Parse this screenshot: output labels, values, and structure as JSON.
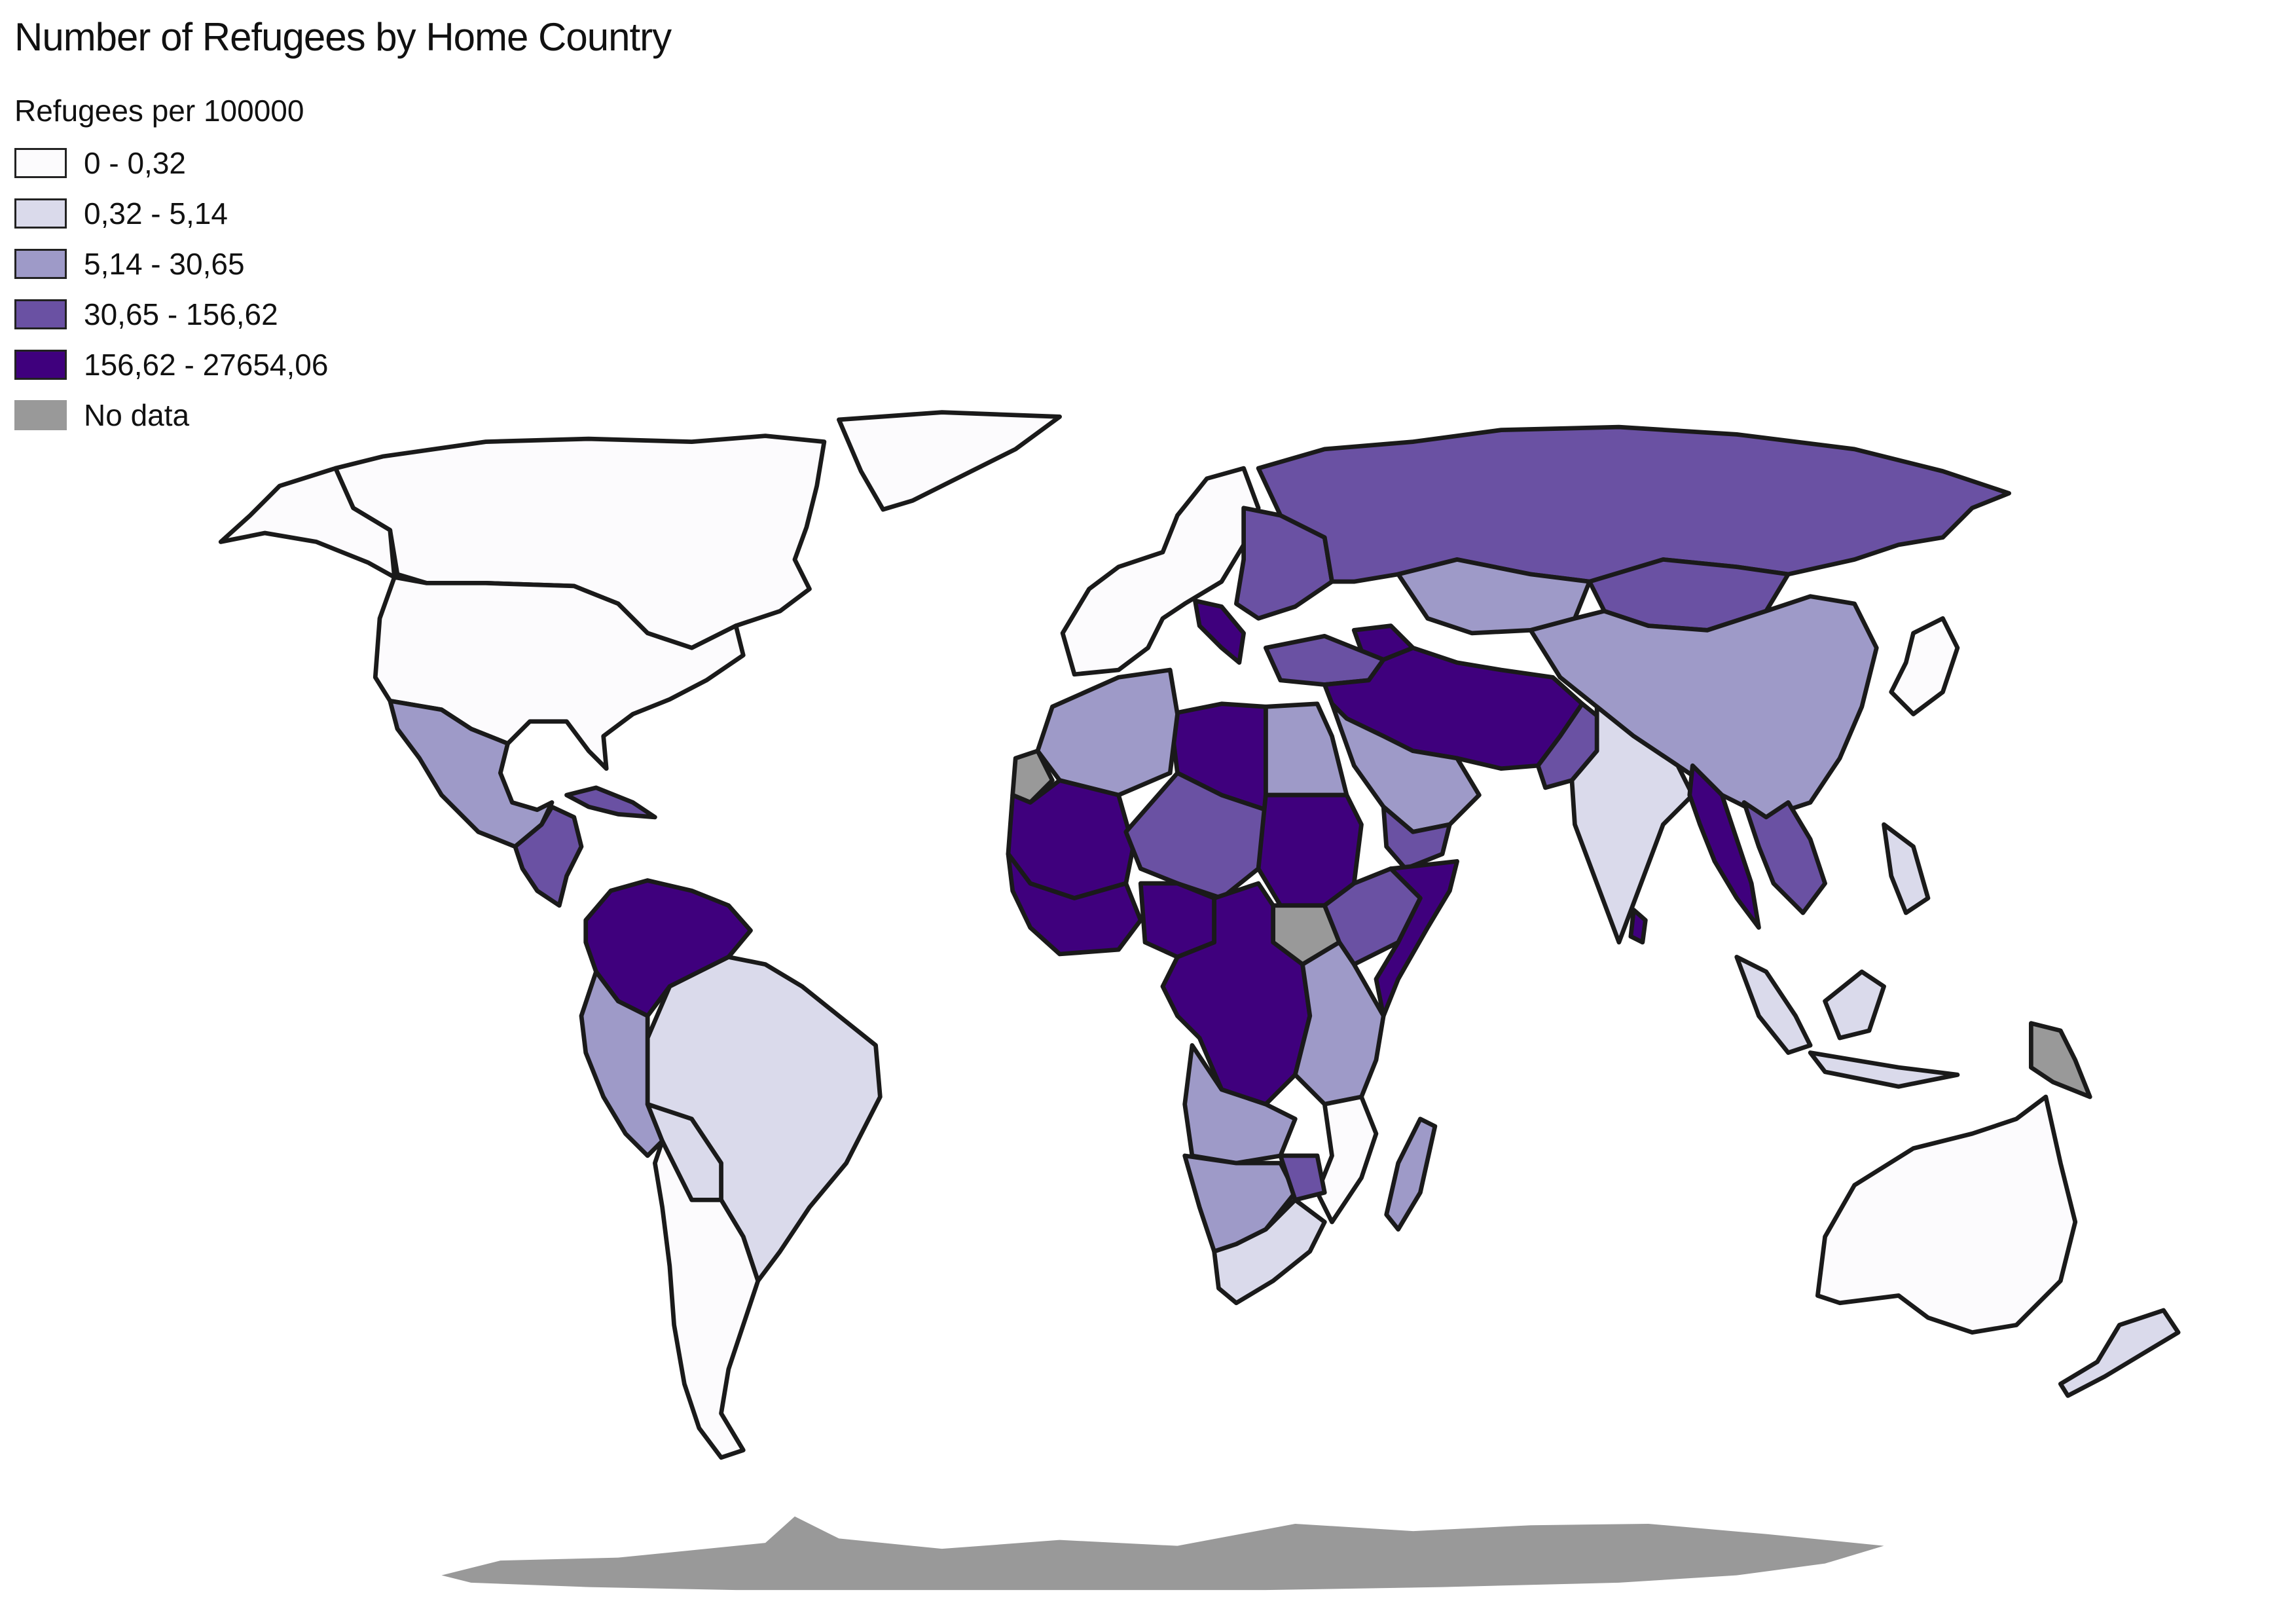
{
  "title": "Number of Refugees by Home Country",
  "legend": {
    "title": "Refugees per 100000",
    "classes": [
      {
        "label": "0 - 0,32",
        "color": "#fcfbfd"
      },
      {
        "label": "0,32 - 5,14",
        "color": "#dadaeb"
      },
      {
        "label": "5,14 - 30,65",
        "color": "#9e9ac8"
      },
      {
        "label": "30,65 - 156,62",
        "color": "#6a51a3"
      },
      {
        "label": "156,62 - 27654,06",
        "color": "#3f007d"
      },
      {
        "label": "No data",
        "color": "#999999"
      }
    ]
  },
  "regions": [
    {
      "name": "Canada",
      "class": 0
    },
    {
      "name": "Greenland",
      "class": 0
    },
    {
      "name": "Alaska",
      "class": 0
    },
    {
      "name": "United States",
      "class": 0
    },
    {
      "name": "Mexico",
      "class": 2
    },
    {
      "name": "Central America",
      "class": 3
    },
    {
      "name": "Cuba",
      "class": 3
    },
    {
      "name": "Colombia and Venezuela",
      "class": 4
    },
    {
      "name": "Brazil",
      "class": 1
    },
    {
      "name": "Andean countries",
      "class": 2
    },
    {
      "name": "Bolivia",
      "class": 1
    },
    {
      "name": "Argentina and Chile",
      "class": 0
    },
    {
      "name": "Western Europe",
      "class": 0
    },
    {
      "name": "Western Balkans",
      "class": 4
    },
    {
      "name": "Eastern Europe",
      "class": 3
    },
    {
      "name": "Russia",
      "class": 3
    },
    {
      "name": "Kazakhstan",
      "class": 2
    },
    {
      "name": "Mongolia",
      "class": 3
    },
    {
      "name": "China",
      "class": 2
    },
    {
      "name": "Japan",
      "class": 0
    },
    {
      "name": "Caucasus",
      "class": 4
    },
    {
      "name": "Turkey",
      "class": 3
    },
    {
      "name": "Syria, Iraq, Iran, Afghanistan",
      "class": 4
    },
    {
      "name": "Pakistan",
      "class": 3
    },
    {
      "name": "India",
      "class": 1
    },
    {
      "name": "Myanmar",
      "class": 4
    },
    {
      "name": "Laos and Vietnam",
      "class": 3
    },
    {
      "name": "Arabian Peninsula",
      "class": 2
    },
    {
      "name": "Yemen",
      "class": 3
    },
    {
      "name": "Egypt",
      "class": 2
    },
    {
      "name": "Libya",
      "class": 4
    },
    {
      "name": "Maghreb",
      "class": 2
    },
    {
      "name": "Western Sahara",
      "class": 5
    },
    {
      "name": "Mali and Mauritania",
      "class": 4
    },
    {
      "name": "West Africa coast",
      "class": 4
    },
    {
      "name": "Niger and Chad",
      "class": 3
    },
    {
      "name": "Nigeria",
      "class": 4
    },
    {
      "name": "Sudan",
      "class": 4
    },
    {
      "name": "South Sudan",
      "class": 5
    },
    {
      "name": "Ethiopia",
      "class": 3
    },
    {
      "name": "Somalia",
      "class": 4
    },
    {
      "name": "Central Africa and DR Congo",
      "class": 4
    },
    {
      "name": "Kenya and Tanzania",
      "class": 2
    },
    {
      "name": "Angola and Zambia",
      "class": 2
    },
    {
      "name": "Namibia and Botswana",
      "class": 2
    },
    {
      "name": "Mozambique",
      "class": 0
    },
    {
      "name": "Zimbabwe",
      "class": 3
    },
    {
      "name": "South Africa",
      "class": 1
    },
    {
      "name": "Madagascar",
      "class": 2
    },
    {
      "name": "Sri Lanka",
      "class": 4
    },
    {
      "name": "Indonesia and Philippines",
      "class": 1
    },
    {
      "name": "Papua New Guinea",
      "class": 5
    },
    {
      "name": "Australia",
      "class": 0
    },
    {
      "name": "New Zealand",
      "class": 1
    },
    {
      "name": "Antarctica",
      "class": 5
    }
  ]
}
